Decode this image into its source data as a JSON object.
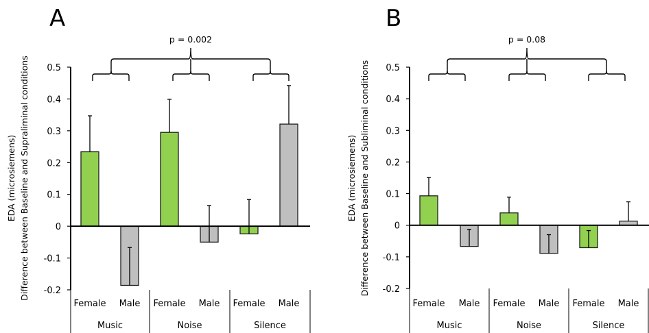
{
  "colors": {
    "female": "#92d050",
    "male": "#bfbfbf"
  },
  "chart_data": [
    {
      "type": "bar",
      "panel": "A",
      "title": "A",
      "ylabel_line1": "EDA (microsiemens)",
      "ylabel_line2": "Difference between Baseline and Supraliminal conditions",
      "xlabel": "",
      "ylim": [
        -0.2,
        0.5
      ],
      "yticks": [
        0.5,
        0.4,
        0.3,
        0.2,
        0.1,
        0,
        -0.1,
        -0.2
      ],
      "ytick_labels": [
        "0.5",
        "0.4",
        "0.3",
        "0.2",
        "0.1",
        "0",
        "-0.1",
        "-0.2"
      ],
      "groups": [
        "Music",
        "Noise",
        "Silence"
      ],
      "subcategories": [
        "Female",
        "Male"
      ],
      "series": [
        {
          "name": "Female",
          "values": [
            0.234,
            0.295,
            -0.024
          ],
          "error": [
            0.113,
            0.104,
            0.108
          ]
        },
        {
          "name": "Male",
          "values": [
            -0.186,
            -0.05,
            0.321
          ],
          "error": [
            0.119,
            0.115,
            0.121
          ]
        }
      ],
      "annotation": "p = 0.002",
      "grid": false,
      "legend": "none"
    },
    {
      "type": "bar",
      "panel": "B",
      "title": "B",
      "ylabel_line1": "EDA (microsiemens)",
      "ylabel_line2": "Difference between Baseline and Subliminal conditions",
      "xlabel": "",
      "ylim": [
        -0.2,
        0.5
      ],
      "yticks": [
        0.5,
        0.4,
        0.3,
        0.2,
        0.1,
        0,
        -0.1,
        -0.2
      ],
      "ytick_labels": [
        "0.5",
        "0.4",
        "0.3",
        "0.2",
        "0.1",
        "0",
        "-0.1",
        "-0.2"
      ],
      "groups": [
        "Music",
        "Noise",
        "Silence"
      ],
      "subcategories": [
        "Female",
        "Male"
      ],
      "series": [
        {
          "name": "Female",
          "values": [
            0.093,
            0.039,
            -0.071
          ],
          "error": [
            0.058,
            0.05,
            0.054
          ]
        },
        {
          "name": "Male",
          "values": [
            -0.067,
            -0.089,
            0.013
          ],
          "error": [
            0.054,
            0.059,
            0.061
          ]
        }
      ],
      "annotation": "p = 0.08",
      "grid": false,
      "legend": "none"
    }
  ]
}
